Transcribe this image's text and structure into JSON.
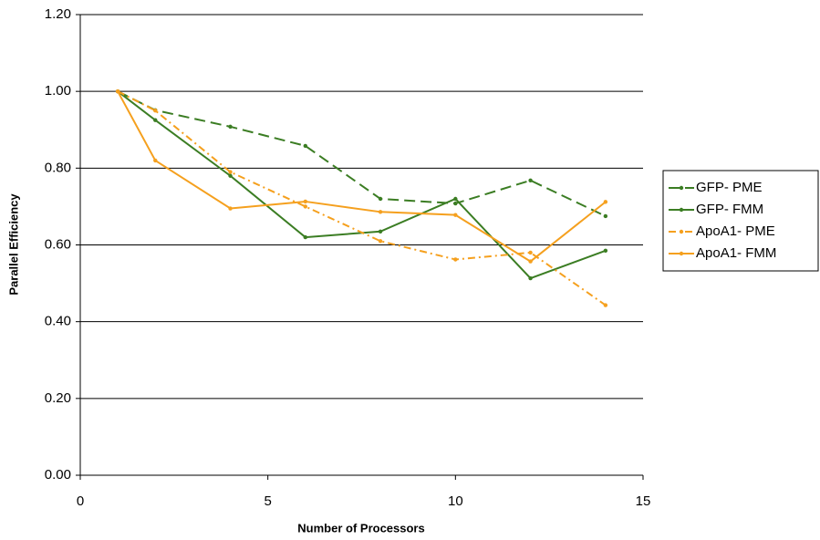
{
  "chart_data": {
    "type": "line",
    "x_label": "Number of Processors",
    "y_label": "Parallel Efficiency",
    "x": [
      1,
      2,
      4,
      6,
      8,
      10,
      12,
      14
    ],
    "series": [
      {
        "name": "GFP- PME",
        "color": "#3b7d23",
        "dash": "dashed",
        "values": [
          1.0,
          0.951,
          0.908,
          0.858,
          0.72,
          0.708,
          0.768,
          0.675
        ]
      },
      {
        "name": "GFP- FMM",
        "color": "#3b7d23",
        "dash": "solid",
        "values": [
          1.0,
          0.925,
          0.78,
          0.62,
          0.635,
          0.72,
          0.513,
          0.585
        ]
      },
      {
        "name": "ApoA1- PME",
        "color": "#f5a01e",
        "dash": "dashdot",
        "values": [
          1.0,
          0.95,
          0.79,
          0.7,
          0.61,
          0.562,
          0.58,
          0.443
        ]
      },
      {
        "name": "ApoA1- FMM",
        "color": "#f5a01e",
        "dash": "solid",
        "values": [
          1.0,
          0.82,
          0.695,
          0.713,
          0.686,
          0.678,
          0.557,
          0.712
        ]
      }
    ],
    "xlim": [
      0,
      15
    ],
    "xticks": [
      0,
      5,
      10,
      15
    ],
    "ylim": [
      0,
      1.2
    ],
    "yticks": [
      {
        "value": 0,
        "label": "0.00"
      },
      {
        "value": 0.2,
        "label": "0.20"
      },
      {
        "value": 0.4,
        "label": "0.40"
      },
      {
        "value": 0.6,
        "label": "0.60"
      },
      {
        "value": 0.8,
        "label": "0.80"
      },
      {
        "value": 1.0,
        "label": "1.00"
      },
      {
        "value": 1.2,
        "label": "1.20"
      }
    ],
    "grid": true,
    "legend": "right"
  }
}
